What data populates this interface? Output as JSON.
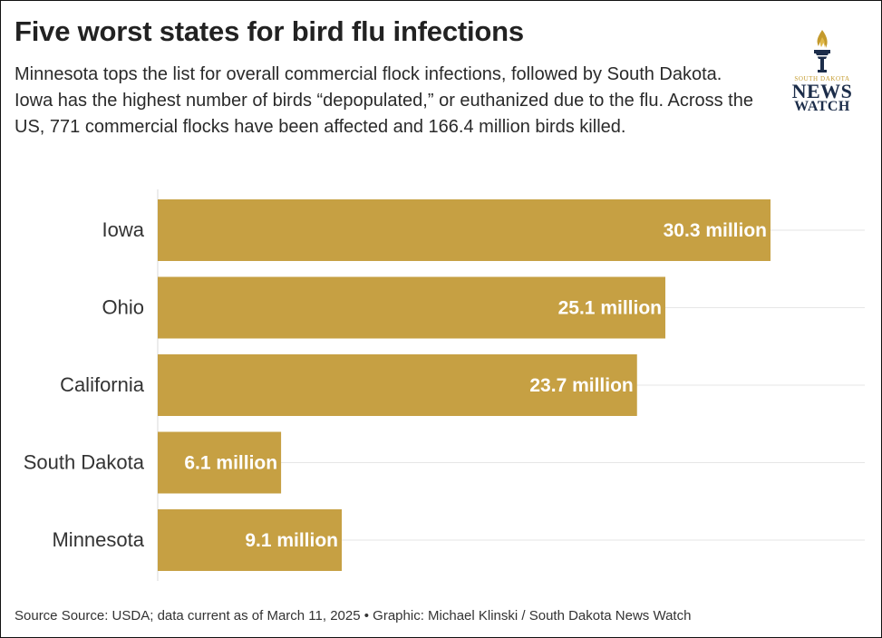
{
  "header": {
    "title": "Five worst states for bird flu infections",
    "subtitle": "Minnesota tops the list for overall commercial flock infections, followed by South Dakota. Iowa has the highest number of birds “depopulated,” or euthanized due to the flu. Across the US, 771 commercial flocks have been affected and 166.4 million birds killed."
  },
  "logo": {
    "small_text": "SOUTH DAKOTA",
    "line1": "NEWS",
    "line2": "WATCH",
    "icon": "torch-icon"
  },
  "footer": {
    "source": "Source Source: USDA; data current as of March 11, 2025 • Graphic: Michael Klinski / South Dakota News Watch"
  },
  "colors": {
    "bar": "#c6a043",
    "grid": "#e6e6e6",
    "bar_label": "#ffffff",
    "logo_gold": "#c49a2c",
    "logo_navy": "#1c2d4a"
  },
  "chart_data": {
    "type": "bar",
    "orientation": "horizontal",
    "categories": [
      "Iowa",
      "Ohio",
      "California",
      "South Dakota",
      "Minnesota"
    ],
    "values": [
      30.3,
      25.1,
      23.7,
      6.1,
      9.1
    ],
    "value_labels": [
      "30.3 million",
      "25.1 million",
      "23.7 million",
      "6.1 million",
      "9.1 million"
    ],
    "xlim": [
      0,
      34
    ],
    "grid": true,
    "legend": "none"
  }
}
